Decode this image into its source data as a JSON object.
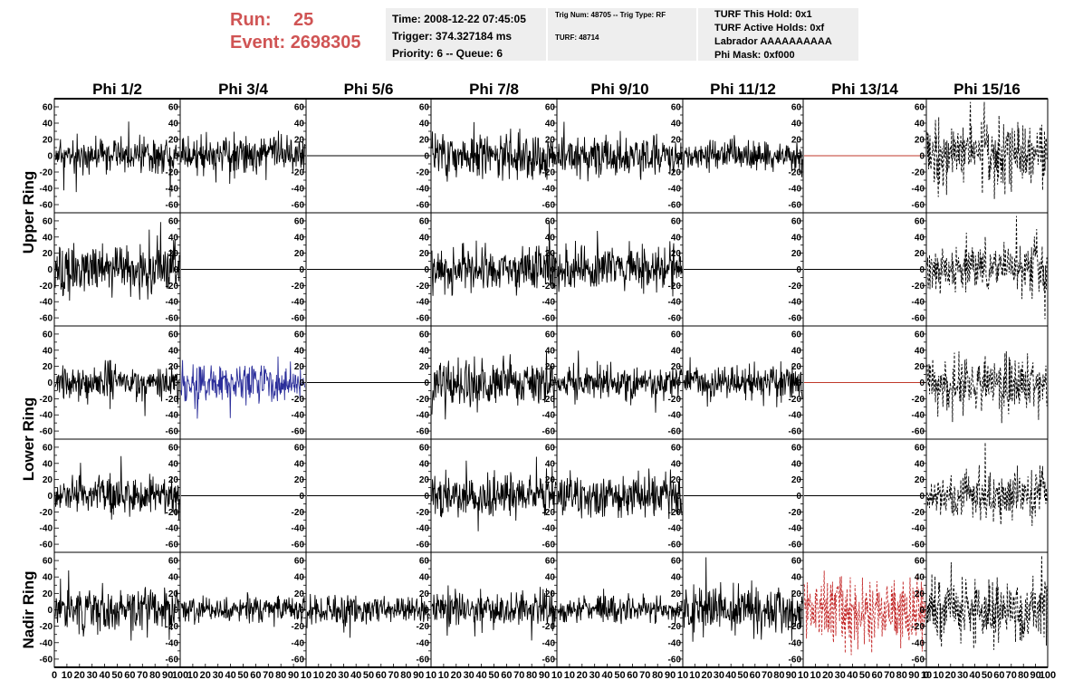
{
  "header": {
    "run_label": "Run:",
    "run_value": "25",
    "event_label": "Event:",
    "event_value": "2698305",
    "time": "Time: 2008-12-22 07:45:05",
    "trigger": "Trigger: 374.327184 ms",
    "priority": "Priority: 6 -- Queue: 6",
    "trig_num": "Trig Num: 48705 -- Trig Type: RF",
    "turf": "TURF: 48714",
    "turf_this_hold": "TURF This Hold: 0x1",
    "turf_active_holds": "TURF Active Holds: 0xf",
    "labrador": "Labrador AAAAAAAAAA",
    "phi_mask": "Phi Mask: 0xf000"
  },
  "colors": {
    "red": "#d05454",
    "trace": "#000000",
    "blue": "#2b2e9a",
    "dark_red": "#c42a2a",
    "flat_red": "#c0392b",
    "panel_bg": "#eeeeee"
  },
  "chart_data": {
    "type": "line",
    "columns": [
      "Phi 1/2",
      "Phi 3/4",
      "Phi 5/6",
      "Phi 7/8",
      "Phi 9/10",
      "Phi 11/12",
      "Phi 13/14",
      "Phi 15/16"
    ],
    "rows": [
      "Upper Ring",
      "Upper Ring",
      "Lower Ring",
      "Lower Ring",
      "Nadir Ring"
    ],
    "row_labels": [
      {
        "label": "Upper Ring",
        "rows": [
          0,
          1
        ]
      },
      {
        "label": "Lower Ring",
        "rows": [
          2,
          3
        ]
      },
      {
        "label": "Nadir Ring",
        "rows": [
          4
        ]
      }
    ],
    "ylim": [
      -70,
      70
    ],
    "xlim": [
      0,
      100
    ],
    "y_ticks": [
      -60,
      -40,
      -20,
      0,
      20,
      40,
      60
    ],
    "y_tick_labels": [
      "-60",
      "-40",
      "-20",
      "0",
      "20",
      "40",
      "60"
    ],
    "x_ticks": [
      0,
      10,
      20,
      30,
      40,
      50,
      60,
      70,
      80,
      90,
      100
    ],
    "x_tick_labels": [
      "0",
      "10",
      "20",
      "30",
      "40",
      "50",
      "60",
      "70",
      "80",
      "90",
      "100"
    ],
    "x_tick_labels_short": [
      "10",
      "20",
      "30",
      "40",
      "50",
      "60",
      "70",
      "80",
      "90",
      "10"
    ],
    "grid": false,
    "traces": [
      [
        {
          "style": "solid",
          "color": "#000000",
          "amp": 16,
          "seed": 11
        },
        {
          "style": "solid",
          "color": "#000000",
          "amp": 18,
          "seed": 12
        },
        {
          "style": "flat",
          "color": "#000000",
          "amp": 0,
          "seed": 13
        },
        {
          "style": "solid",
          "color": "#000000",
          "amp": 20,
          "seed": 14
        },
        {
          "style": "solid",
          "color": "#000000",
          "amp": 18,
          "seed": 15
        },
        {
          "style": "solid",
          "color": "#000000",
          "amp": 14,
          "seed": 16
        },
        {
          "style": "flat",
          "color": "#c0392b",
          "amp": 0,
          "seed": 17
        },
        {
          "style": "dashed",
          "color": "#000000",
          "amp": 30,
          "seed": 18
        }
      ],
      [
        {
          "style": "solid",
          "color": "#000000",
          "amp": 24,
          "seed": 21
        },
        {
          "style": "flat",
          "color": "#000000",
          "amp": 0,
          "seed": 22
        },
        {
          "style": "flat",
          "color": "#000000",
          "amp": 0,
          "seed": 23
        },
        {
          "style": "solid",
          "color": "#000000",
          "amp": 22,
          "seed": 24
        },
        {
          "style": "solid",
          "color": "#000000",
          "amp": 20,
          "seed": 25
        },
        {
          "style": "flat",
          "color": "#000000",
          "amp": 0,
          "seed": 26
        },
        {
          "style": "flat",
          "color": "#000000",
          "amp": 0,
          "seed": 27
        },
        {
          "style": "dashed",
          "color": "#000000",
          "amp": 22,
          "seed": 28
        }
      ],
      [
        {
          "style": "solid",
          "color": "#000000",
          "amp": 16,
          "seed": 31
        },
        {
          "style": "solid",
          "color": "#2b2e9a",
          "amp": 18,
          "seed": 32
        },
        {
          "style": "flat",
          "color": "#000000",
          "amp": 0,
          "seed": 33
        },
        {
          "style": "solid",
          "color": "#000000",
          "amp": 22,
          "seed": 34
        },
        {
          "style": "solid",
          "color": "#000000",
          "amp": 16,
          "seed": 35
        },
        {
          "style": "solid",
          "color": "#000000",
          "amp": 16,
          "seed": 36
        },
        {
          "style": "flat",
          "color": "#c0392b",
          "amp": 0,
          "seed": 37
        },
        {
          "style": "dashed",
          "color": "#000000",
          "amp": 26,
          "seed": 38
        }
      ],
      [
        {
          "style": "solid",
          "color": "#000000",
          "amp": 18,
          "seed": 41
        },
        {
          "style": "flat",
          "color": "#000000",
          "amp": 0,
          "seed": 42
        },
        {
          "style": "flat",
          "color": "#000000",
          "amp": 0,
          "seed": 43
        },
        {
          "style": "solid",
          "color": "#000000",
          "amp": 20,
          "seed": 44
        },
        {
          "style": "solid",
          "color": "#000000",
          "amp": 20,
          "seed": 45
        },
        {
          "style": "flat",
          "color": "#000000",
          "amp": 0,
          "seed": 46
        },
        {
          "style": "flat",
          "color": "#000000",
          "amp": 0,
          "seed": 47
        },
        {
          "style": "dashed",
          "color": "#000000",
          "amp": 24,
          "seed": 48
        }
      ],
      [
        {
          "style": "solid",
          "color": "#000000",
          "amp": 20,
          "seed": 51
        },
        {
          "style": "solid",
          "color": "#000000",
          "amp": 12,
          "seed": 52
        },
        {
          "style": "solid",
          "color": "#000000",
          "amp": 14,
          "seed": 53
        },
        {
          "style": "solid",
          "color": "#000000",
          "amp": 16,
          "seed": 54
        },
        {
          "style": "solid",
          "color": "#000000",
          "amp": 12,
          "seed": 55
        },
        {
          "style": "solid",
          "color": "#000000",
          "amp": 22,
          "seed": 56
        },
        {
          "style": "dashed",
          "color": "#c42a2a",
          "amp": 32,
          "seed": 57
        },
        {
          "style": "dashed",
          "color": "#000000",
          "amp": 30,
          "seed": 58
        }
      ]
    ]
  }
}
